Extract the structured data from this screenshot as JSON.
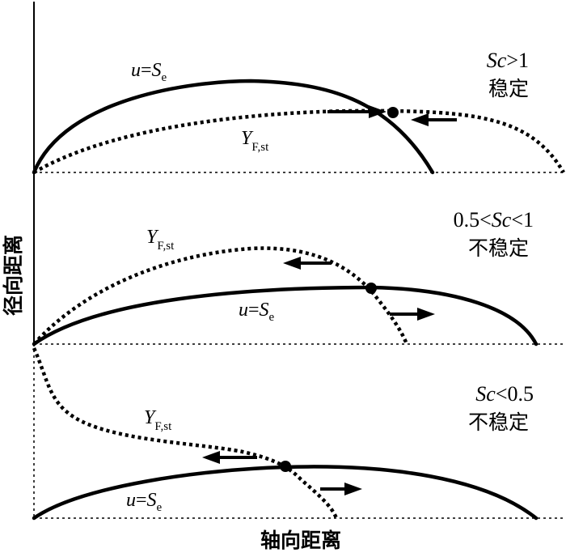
{
  "axes": {
    "y_label": "径向距离",
    "x_label": "轴向距离"
  },
  "panels": [
    {
      "condition": "Sc>1",
      "condition_italic": "Sc",
      "condition_rest": ">1",
      "status": "稳定",
      "solid_curve_label": {
        "italic_u": "u",
        "eq": "=",
        "italic_s": "S",
        "sub": "e"
      },
      "dotted_curve_label": {
        "italic_y": "Y",
        "sub": "F,st"
      }
    },
    {
      "condition": "0.5<Sc<1",
      "condition_pre": "0.5<",
      "condition_italic": "Sc",
      "condition_rest": "<1",
      "status": "不稳定",
      "solid_curve_label": {
        "italic_u": "u",
        "eq": "=",
        "italic_s": "S",
        "sub": "e"
      },
      "dotted_curve_label": {
        "italic_y": "Y",
        "sub": "F,st"
      }
    },
    {
      "condition": "Sc<0.5",
      "condition_italic": "Sc",
      "condition_rest": "<0.5",
      "status": "不稳定",
      "solid_curve_label": {
        "italic_u": "u",
        "eq": "=",
        "italic_s": "S",
        "sub": "e"
      },
      "dotted_curve_label": {
        "italic_y": "Y",
        "sub": "F,st"
      }
    }
  ],
  "colors": {
    "ink": "#000000",
    "background": "#ffffff"
  }
}
